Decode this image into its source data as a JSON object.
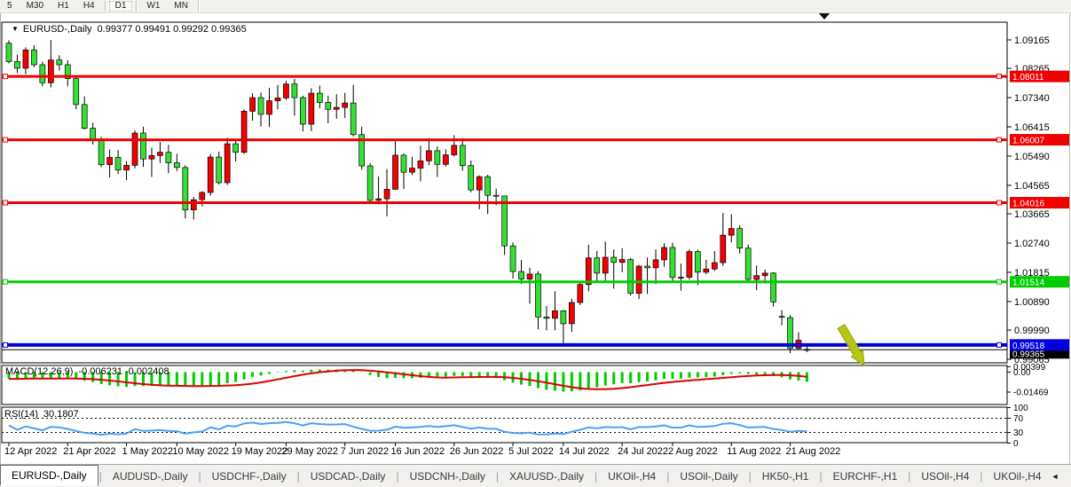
{
  "toolbar": {
    "periods": [
      {
        "label": "5",
        "active": false
      },
      {
        "label": "M30",
        "active": false
      },
      {
        "label": "H1",
        "active": false
      },
      {
        "label": "H4",
        "active": false,
        "sep_after": true
      },
      {
        "label": "D1",
        "active": true,
        "sep_after": true
      },
      {
        "label": "W1",
        "active": false
      },
      {
        "label": "MN",
        "active": false,
        "sep_after": true
      }
    ]
  },
  "chart": {
    "title": {
      "symbol": "EURUSD-,Daily",
      "ohlc": "0.99377 0.99491 0.99292 0.99365",
      "dropdown_icon": "▼"
    },
    "colors": {
      "bull": "#f40000",
      "bear": "#35e035",
      "wick": "#000000",
      "macd_hist": "#00cc00",
      "macd_signal": "#e00000",
      "rsi_line": "#4aa2f2",
      "arrow": "#b6c614",
      "badge_text": "#ffffff"
    },
    "price_axis_ticks": [
      "1.09165",
      "1.08265",
      "1.07340",
      "1.06415",
      "1.05490",
      "1.04565",
      "1.03665",
      "1.02740",
      "1.01815",
      "1.00890",
      "0.99990",
      "0.99065"
    ],
    "level_lines": [
      {
        "price": 1.08011,
        "label": "1.08011",
        "color": "#ee0000",
        "width": 3
      },
      {
        "price": 1.06007,
        "label": "1.06007",
        "color": "#ee0000",
        "width": 3
      },
      {
        "price": 1.04016,
        "label": "1.04016",
        "color": "#ee0000",
        "width": 3
      },
      {
        "price": 1.01514,
        "label": "1.01514",
        "color": "#00cc00",
        "width": 3
      },
      {
        "price": 0.99518,
        "label": "0.99518",
        "color": "#0000dd",
        "width": 4
      }
    ],
    "current_price_line": {
      "price": 0.99365,
      "label": "0.99365",
      "color": "#000000"
    },
    "macd": {
      "name": "MACD(12,26,9)",
      "values": "-0.006231 -0.002408",
      "axis": [
        {
          "v": 0.00399,
          "label": "0.00399"
        },
        {
          "v": 0.0,
          "label": "0.00"
        },
        {
          "v": -0.01469,
          "label": "-0.01469"
        }
      ]
    },
    "rsi": {
      "name": "RSI(14)",
      "value": "30.1807",
      "axis": [
        {
          "v": 100,
          "label": "100"
        },
        {
          "v": 70,
          "label": "70"
        },
        {
          "v": 30,
          "label": "30"
        },
        {
          "v": 0,
          "label": "0"
        }
      ],
      "levels": [
        70,
        30
      ]
    },
    "date_ticks": [
      {
        "i": 0,
        "label": "12 Apr 2022"
      },
      {
        "i": 7,
        "label": "21 Apr 2022"
      },
      {
        "i": 14,
        "label": "1 May 2022"
      },
      {
        "i": 20,
        "label": "10 May 2022"
      },
      {
        "i": 27,
        "label": "19 May 2022"
      },
      {
        "i": 33,
        "label": "29 May 2022"
      },
      {
        "i": 40,
        "label": "7 Jun 2022"
      },
      {
        "i": 46,
        "label": "16 Jun 2022"
      },
      {
        "i": 53,
        "label": "26 Jun 2022"
      },
      {
        "i": 60,
        "label": "5 Jul 2022"
      },
      {
        "i": 66,
        "label": "14 Jul 2022"
      },
      {
        "i": 73,
        "label": "24 Jul 2022"
      },
      {
        "i": 79,
        "label": "2 Aug 2022"
      },
      {
        "i": 86,
        "label": "11 Aug 2022"
      },
      {
        "i": 93,
        "label": "21 Aug 2022"
      }
    ]
  },
  "chart_data": {
    "type": "candlestick",
    "symbol": "EURUSD-,Daily",
    "ylim": [
      0.99065,
      1.09165
    ],
    "ohlc": [
      [
        1.0906,
        1.0915,
        1.0842,
        1.0848
      ],
      [
        1.0848,
        1.087,
        1.0812,
        1.0827
      ],
      [
        1.0827,
        1.0893,
        1.0808,
        1.0885
      ],
      [
        1.0885,
        1.09,
        1.083,
        1.0838
      ],
      [
        1.0838,
        1.0848,
        1.077,
        1.0781
      ],
      [
        1.0781,
        1.0916,
        1.0766,
        1.0853
      ],
      [
        1.0853,
        1.0868,
        1.082,
        1.0838
      ],
      [
        1.0838,
        1.0852,
        1.077,
        1.0794
      ],
      [
        1.0794,
        1.08,
        1.0697,
        1.0712
      ],
      [
        1.0712,
        1.0738,
        1.0633,
        1.0637
      ],
      [
        1.0637,
        1.0655,
        1.0586,
        1.0598
      ],
      [
        1.0598,
        1.061,
        1.0514,
        1.0522
      ],
      [
        1.0522,
        1.057,
        1.0482,
        1.0545
      ],
      [
        1.0545,
        1.0568,
        1.0492,
        1.0505
      ],
      [
        1.0505,
        1.0533,
        1.0473,
        1.052
      ],
      [
        1.052,
        1.063,
        1.051,
        1.0622
      ],
      [
        1.0622,
        1.0642,
        1.0515,
        1.054
      ],
      [
        1.054,
        1.0576,
        1.0483,
        1.0551
      ],
      [
        1.0551,
        1.0594,
        1.0527,
        1.0561
      ],
      [
        1.0561,
        1.0585,
        1.0495,
        1.0528
      ],
      [
        1.0528,
        1.0556,
        1.0502,
        1.0513
      ],
      [
        1.0513,
        1.052,
        1.0352,
        1.0379
      ],
      [
        1.0379,
        1.042,
        1.0349,
        1.0411
      ],
      [
        1.0411,
        1.0438,
        1.039,
        1.0434
      ],
      [
        1.0434,
        1.0556,
        1.0424,
        1.0546
      ],
      [
        1.0546,
        1.0563,
        1.0459,
        1.0465
      ],
      [
        1.0465,
        1.0607,
        1.0458,
        1.0588
      ],
      [
        1.0588,
        1.0604,
        1.0532,
        1.0561
      ],
      [
        1.0561,
        1.0697,
        1.0556,
        1.0691
      ],
      [
        1.0691,
        1.0748,
        1.0661,
        1.0734
      ],
      [
        1.0734,
        1.075,
        1.0642,
        1.0681
      ],
      [
        1.0681,
        1.0765,
        1.0641,
        1.0724
      ],
      [
        1.0724,
        1.0774,
        1.0697,
        1.0733
      ],
      [
        1.0733,
        1.0787,
        1.0727,
        1.0777
      ],
      [
        1.0777,
        1.0793,
        1.0677,
        1.0734
      ],
      [
        1.0734,
        1.074,
        1.0627,
        1.065
      ],
      [
        1.065,
        1.0764,
        1.0628,
        1.0748
      ],
      [
        1.0748,
        1.0772,
        1.07,
        1.0719
      ],
      [
        1.0719,
        1.074,
        1.0653,
        1.0697
      ],
      [
        1.0697,
        1.0745,
        1.0667,
        1.0703
      ],
      [
        1.0703,
        1.0749,
        1.067,
        1.0717
      ],
      [
        1.0717,
        1.0774,
        1.0611,
        1.0617
      ],
      [
        1.0617,
        1.0642,
        1.0506,
        1.0518
      ],
      [
        1.0518,
        1.0527,
        1.0399,
        1.0409
      ],
      [
        1.0409,
        1.0485,
        1.0397,
        1.0414
      ],
      [
        1.0414,
        1.0508,
        1.0359,
        1.0444
      ],
      [
        1.0444,
        1.0601,
        1.0444,
        1.0552
      ],
      [
        1.0552,
        1.0557,
        1.0445,
        1.0498
      ],
      [
        1.0498,
        1.0547,
        1.0489,
        1.0511
      ],
      [
        1.0511,
        1.0582,
        1.0469,
        1.0534
      ],
      [
        1.0534,
        1.0606,
        1.052,
        1.0566
      ],
      [
        1.0566,
        1.058,
        1.0483,
        1.0523
      ],
      [
        1.0523,
        1.0571,
        1.0516,
        1.0553
      ],
      [
        1.0553,
        1.0615,
        1.0548,
        1.0583
      ],
      [
        1.0583,
        1.0606,
        1.0503,
        1.0519
      ],
      [
        1.0519,
        1.0535,
        1.0435,
        1.0442
      ],
      [
        1.0442,
        1.0488,
        1.0381,
        1.0484
      ],
      [
        1.0484,
        1.049,
        1.0366,
        1.0425
      ],
      [
        1.0425,
        1.0446,
        1.0394,
        1.0423
      ],
      [
        1.0423,
        1.0424,
        1.0236,
        1.0265
      ],
      [
        1.0265,
        1.0276,
        1.0162,
        1.0184
      ],
      [
        1.0184,
        1.0221,
        1.0145,
        1.016
      ],
      [
        1.016,
        1.0196,
        1.0082,
        1.0176
      ],
      [
        1.0176,
        1.0185,
        1.0001,
        1.004
      ],
      [
        1.004,
        1.0075,
        0.9998,
        1.0036
      ],
      [
        1.0036,
        1.0122,
        0.9998,
        1.006
      ],
      [
        1.006,
        1.0062,
        0.9952,
        1.0019
      ],
      [
        1.0019,
        1.0098,
        0.9993,
        1.0086
      ],
      [
        1.0086,
        1.0149,
        1.0078,
        1.0143
      ],
      [
        1.0143,
        1.0269,
        1.0121,
        1.0227
      ],
      [
        1.0227,
        1.0249,
        1.0154,
        1.0179
      ],
      [
        1.0179,
        1.0279,
        1.0151,
        1.0229
      ],
      [
        1.0229,
        1.0254,
        1.013,
        1.0213
      ],
      [
        1.0213,
        1.0258,
        1.0182,
        1.0222
      ],
      [
        1.0222,
        1.0227,
        1.0108,
        1.0115
      ],
      [
        1.0115,
        1.0205,
        1.0097,
        1.0201
      ],
      [
        1.0201,
        1.0228,
        1.0113,
        1.0196
      ],
      [
        1.0196,
        1.0254,
        1.0144,
        1.0221
      ],
      [
        1.0221,
        1.0274,
        1.0199,
        1.026
      ],
      [
        1.026,
        1.0275,
        1.0155,
        1.0165
      ],
      [
        1.0165,
        1.0209,
        1.0123,
        1.0166
      ],
      [
        1.0166,
        1.0254,
        1.0158,
        1.0247
      ],
      [
        1.0247,
        1.0253,
        1.0141,
        1.0182
      ],
      [
        1.0182,
        1.0221,
        1.0175,
        1.0192
      ],
      [
        1.0192,
        1.0249,
        1.0186,
        1.0212
      ],
      [
        1.0212,
        1.0369,
        1.0202,
        1.0299
      ],
      [
        1.0299,
        1.0365,
        1.0276,
        1.032
      ],
      [
        1.032,
        1.033,
        1.0241,
        1.0258
      ],
      [
        1.0258,
        1.0269,
        1.0154,
        1.0159
      ],
      [
        1.0159,
        1.0203,
        1.0125,
        1.0171
      ],
      [
        1.0171,
        1.019,
        1.0146,
        1.0179
      ],
      [
        1.0179,
        1.0182,
        1.0073,
        1.0088
      ],
      [
        1.0042,
        1.0062,
        1.0014,
        1.004
      ],
      [
        1.0038,
        1.0046,
        0.9926,
        0.9941
      ],
      [
        0.9941,
        0.9992,
        0.9936,
        0.9967
      ],
      [
        0.99377,
        0.99491,
        0.99292,
        0.99365
      ]
    ]
  },
  "tabs": {
    "items": [
      {
        "label": "EURUSD-,Daily",
        "active": true
      },
      {
        "label": "AUDUSD-,Daily",
        "active": false
      },
      {
        "label": "USDCHF-,Daily",
        "active": false
      },
      {
        "label": "USDCAD-,Daily",
        "active": false
      },
      {
        "label": "USDCNH-,Daily",
        "active": false
      },
      {
        "label": "XAUUSD-,Daily",
        "active": false
      },
      {
        "label": "UKOil-,H4",
        "active": false
      },
      {
        "label": "USOil-,Daily",
        "active": false
      },
      {
        "label": "HK50-,H1",
        "active": false
      },
      {
        "label": "EURCHF-,H1",
        "active": false
      },
      {
        "label": "USOil-,H4",
        "active": false
      },
      {
        "label": "UKOil-,H4",
        "active": false
      }
    ],
    "scroll_left": "◄",
    "scroll_right": "►"
  }
}
